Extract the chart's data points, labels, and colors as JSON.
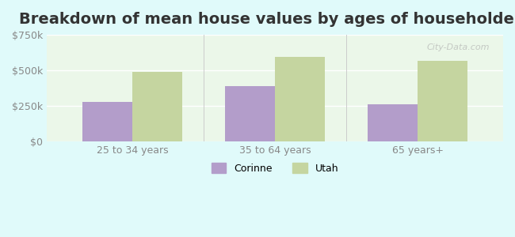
{
  "title": "Breakdown of mean house values by ages of householders",
  "categories": [
    "25 to 34 years",
    "35 to 64 years",
    "65 years+"
  ],
  "corinne_values": [
    280000,
    390000,
    265000
  ],
  "utah_values": [
    490000,
    595000,
    565000
  ],
  "corinne_color": "#b39dca",
  "utah_color": "#c5d5a0",
  "ylim": [
    0,
    750000
  ],
  "yticks": [
    0,
    250000,
    500000,
    750000
  ],
  "ytick_labels": [
    "$0",
    "$250k",
    "$500k",
    "$750k"
  ],
  "background_color": "#e0fafa",
  "plot_bg_gradient_top": "#e8f5e0",
  "plot_bg_gradient_bottom": "#f0faf0",
  "legend_labels": [
    "Corinne",
    "Utah"
  ],
  "bar_width": 0.35,
  "title_fontsize": 14,
  "watermark": "City-Data.com"
}
